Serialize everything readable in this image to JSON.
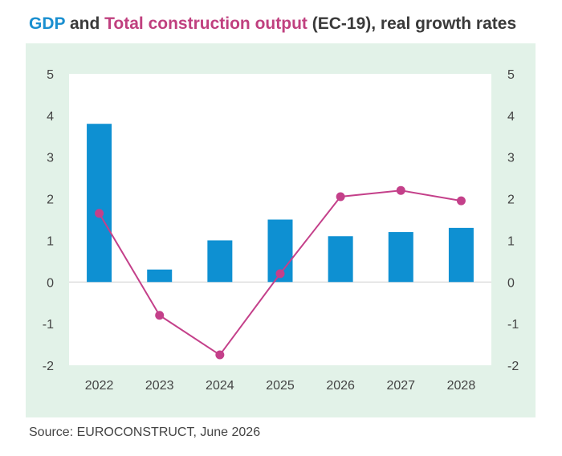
{
  "title": {
    "gdp": "GDP",
    "and": " and ",
    "construction": "Total construction output",
    "rest": " (EC-19), real growth rates"
  },
  "source": "Source: EUROCONSTRUCT, June 2026",
  "colors": {
    "gdp": "#0e90d2",
    "construction": "#c4408a",
    "panel": "#e2f2e8",
    "plot": "#ffffff"
  },
  "chart_data": {
    "type": "bar",
    "categories": [
      "2022",
      "2023",
      "2024",
      "2025",
      "2026",
      "2027",
      "2028"
    ],
    "series": [
      {
        "name": "GDP",
        "type": "bar",
        "values": [
          3.8,
          0.3,
          1.0,
          1.5,
          1.1,
          1.2,
          1.3
        ]
      },
      {
        "name": "Total construction output",
        "type": "line",
        "values": [
          1.65,
          -0.8,
          -1.75,
          0.2,
          2.05,
          2.2,
          1.95
        ]
      }
    ],
    "ylim": [
      -2,
      5
    ],
    "yticks": [
      "-2",
      "-1",
      "0",
      "1",
      "2",
      "3",
      "4",
      "5"
    ],
    "y2ticks": [
      "-2",
      "-1",
      "0",
      "1",
      "2",
      "3",
      "4",
      "5"
    ],
    "grid": false
  }
}
